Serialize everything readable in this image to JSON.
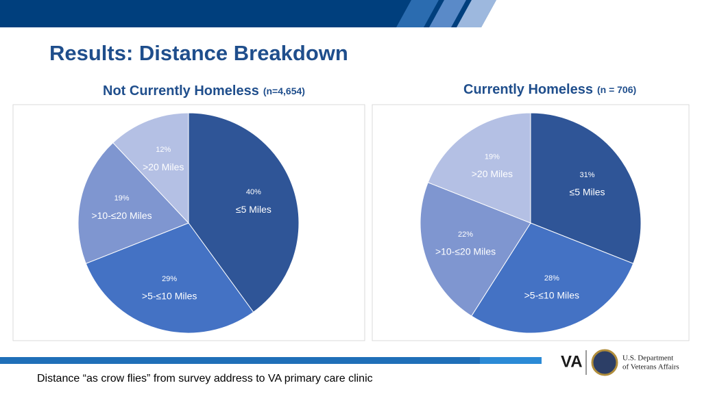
{
  "title": "Results: Distance Breakdown",
  "footnote": "Distance “as crow flies” from survey address to VA primary care clinic",
  "logo": {
    "mark": "VA",
    "line1": "U.S. Department",
    "line2": "of Veterans Affairs"
  },
  "chart_data": [
    {
      "type": "pie",
      "title": "Not Currently Homeless",
      "subtitle": "(n=4,654)",
      "categories": [
        "≤5 Miles",
        ">5-≤10 Miles",
        ">10-≤20 Miles",
        ">20 Miles"
      ],
      "values": [
        40,
        29,
        19,
        12
      ],
      "value_labels": [
        "40%",
        "29%",
        "19%",
        "12%"
      ],
      "colors": [
        "#2f5597",
        "#4472c4",
        "#7f96d0",
        "#b4c0e4"
      ]
    },
    {
      "type": "pie",
      "title": "Currently Homeless",
      "subtitle": "(n = 706)",
      "categories": [
        "≤5 Miles",
        ">5-≤10 Miles",
        ">10-≤20 Miles",
        ">20 Miles"
      ],
      "values": [
        31,
        28,
        22,
        19
      ],
      "value_labels": [
        "31%",
        "28%",
        "22%",
        "19%"
      ],
      "colors": [
        "#2f5597",
        "#4472c4",
        "#7f96d0",
        "#b4c0e4"
      ]
    }
  ]
}
